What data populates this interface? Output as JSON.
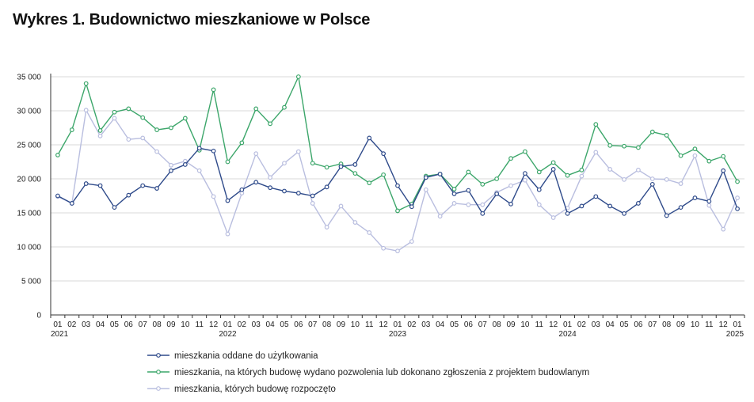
{
  "chart_data": {
    "type": "line",
    "title": "Wykres 1. Budownictwo mieszkaniowe w Polsce",
    "xlabel": "",
    "ylabel": "",
    "ylim": [
      0,
      35000
    ],
    "y_ticks": [
      0,
      5000,
      10000,
      15000,
      20000,
      25000,
      30000,
      35000
    ],
    "y_tick_labels": [
      "0",
      "5 000",
      "10 000",
      "15 000",
      "20 000",
      "25 000",
      "30 000",
      "35 000"
    ],
    "months": [
      "01",
      "02",
      "03",
      "04",
      "05",
      "06",
      "07",
      "08",
      "09",
      "10",
      "11",
      "12",
      "01",
      "02",
      "03",
      "04",
      "05",
      "06",
      "07",
      "08",
      "09",
      "10",
      "11",
      "12",
      "01",
      "02",
      "03",
      "04",
      "05",
      "06",
      "07",
      "08",
      "09",
      "10",
      "11",
      "12",
      "01",
      "02",
      "03",
      "04",
      "05",
      "06",
      "07",
      "08",
      "09",
      "10",
      "11",
      "12",
      "01"
    ],
    "year_labels": [
      {
        "index": 0,
        "label": "2021"
      },
      {
        "index": 12,
        "label": "2022"
      },
      {
        "index": 24,
        "label": "2023"
      },
      {
        "index": 36,
        "label": "2024"
      },
      {
        "index": 48,
        "label": "2025"
      }
    ],
    "grid": "horizontal",
    "legend_position": "bottom",
    "series": [
      {
        "name": "mieszkania oddane do użytkowania",
        "color": "#2e4a8a",
        "values": [
          17500,
          16400,
          19300,
          19000,
          15800,
          17600,
          19000,
          18600,
          21200,
          22100,
          24500,
          24100,
          16800,
          18400,
          19500,
          18700,
          18200,
          17900,
          17500,
          18800,
          21800,
          22100,
          26000,
          23700,
          19000,
          15900,
          20200,
          20700,
          17800,
          18300,
          14900,
          17800,
          16300,
          20800,
          18400,
          21400,
          14900,
          16000,
          17400,
          16000,
          14900,
          16400,
          19200,
          14600,
          15800,
          17200,
          16700,
          21200,
          15600
        ]
      },
      {
        "name": "mieszkania, na których budowę wydano pozwolenia lub dokonano zgłoszenia z projektem budowlanym",
        "color": "#3ca66a",
        "values": [
          23500,
          27200,
          34000,
          27100,
          29800,
          30300,
          29000,
          27200,
          27500,
          28900,
          24200,
          33100,
          22500,
          25300,
          30300,
          28100,
          30500,
          35000,
          22300,
          21700,
          22200,
          20800,
          19400,
          20600,
          15300,
          16300,
          20400,
          20700,
          18500,
          21000,
          19200,
          20000,
          23000,
          24000,
          21000,
          22400,
          20500,
          21300,
          28000,
          24900,
          24800,
          24600,
          26900,
          26400,
          23400,
          24400,
          22600,
          23300,
          19600
        ]
      },
      {
        "name": "mieszkania, których budowę rozpoczęto",
        "color": "#b9bedf",
        "values": [
          17400,
          16400,
          30100,
          26300,
          28900,
          25800,
          26000,
          24000,
          22000,
          22600,
          21200,
          17400,
          11900,
          17900,
          23700,
          20200,
          22300,
          24000,
          16400,
          12900,
          16000,
          13600,
          12100,
          9800,
          9400,
          10800,
          18400,
          14500,
          16400,
          16200,
          16200,
          18000,
          19000,
          19800,
          16200,
          14300,
          15700,
          20400,
          23900,
          21400,
          19900,
          21300,
          20000,
          19900,
          19300,
          23400,
          16100,
          12600,
          17200
        ]
      }
    ]
  }
}
